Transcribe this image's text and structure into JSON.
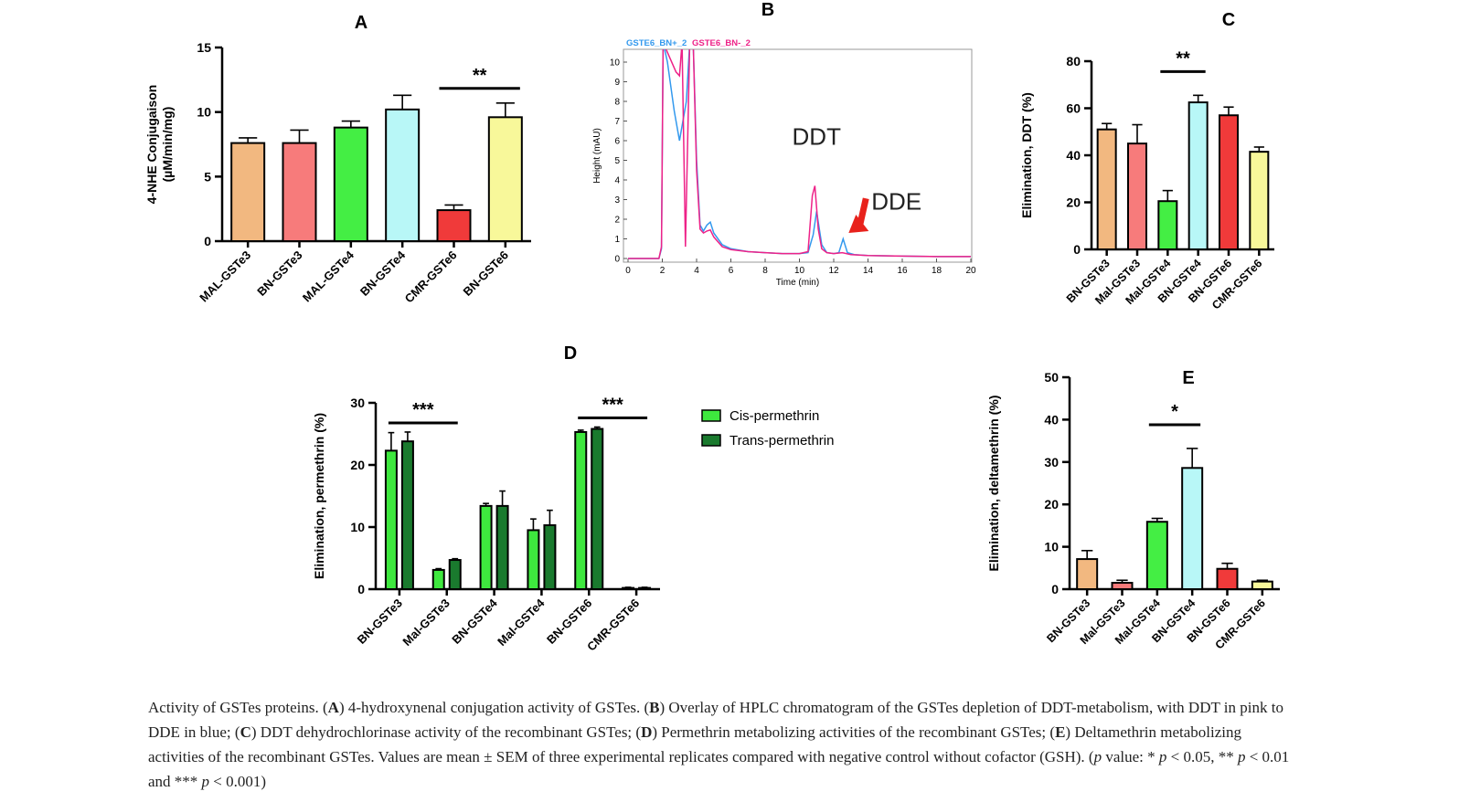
{
  "chart_data": [
    {
      "panel": "A",
      "type": "bar",
      "ylabel": [
        "4-NHE Conjugaison",
        "(µM/min/mg)"
      ],
      "ylim": [
        0,
        15
      ],
      "yticks": [
        0,
        5,
        10,
        15
      ],
      "categories": [
        "MAL-GSTe3",
        "BN-GSTe3",
        "MAL-GSTe4",
        "BN-GSTe4",
        "CMR-GSTe6",
        "BN-GSTe6"
      ],
      "values": [
        7.6,
        7.6,
        8.8,
        10.2,
        2.4,
        9.6
      ],
      "errors": [
        0.4,
        1.0,
        0.5,
        1.1,
        0.4,
        1.1
      ],
      "colors": [
        "#f2b880",
        "#f77b7b",
        "#44ee44",
        "#b8f7f7",
        "#f03a3a",
        "#f8f89a"
      ],
      "significance": [
        {
          "from": 4,
          "to": 5,
          "label": "**"
        }
      ]
    },
    {
      "panel": "B",
      "type": "line",
      "legend": [
        "GSTE6_BN+_2",
        "GSTE6_BN-_2"
      ],
      "legend_colors": [
        "#3399ee",
        "#ee2288"
      ],
      "xlabel": "Time (min)",
      "ylabel": "Height (mAU)",
      "xlim": [
        0,
        20
      ],
      "ylim": [
        0,
        10.8
      ],
      "xticks": [
        0,
        2,
        4,
        6,
        8,
        10,
        12,
        14,
        16,
        18,
        20
      ],
      "yticks": [
        0,
        1,
        2,
        3,
        4,
        5,
        6,
        7,
        8,
        9,
        10
      ],
      "series": [
        {
          "name": "GSTE6_BN+_2",
          "color": "#3399ee",
          "x": [
            0,
            1.8,
            1.95,
            2.05,
            2.3,
            2.7,
            3.0,
            3.4,
            3.6,
            3.8,
            4.0,
            4.2,
            4.4,
            4.6,
            4.8,
            5.0,
            5.5,
            6.0,
            7.0,
            8.0,
            9.0,
            10.0,
            10.5,
            10.8,
            11.0,
            11.3,
            11.6,
            12.0,
            12.3,
            12.55,
            12.8,
            13.2,
            14.0,
            16.0,
            18.0,
            20.0
          ],
          "y": [
            0,
            0,
            0.5,
            11,
            10,
            7.5,
            6.0,
            8.0,
            11,
            11,
            5.0,
            1.7,
            1.4,
            1.7,
            1.85,
            1.3,
            0.7,
            0.5,
            0.35,
            0.3,
            0.25,
            0.25,
            0.3,
            1.2,
            2.4,
            0.7,
            0.3,
            0.25,
            0.3,
            1.0,
            0.3,
            0.2,
            0.15,
            0.12,
            0.1,
            0.1
          ]
        },
        {
          "name": "GSTE6_BN-_2",
          "color": "#ee2288",
          "x": [
            0,
            1.8,
            1.95,
            2.05,
            2.3,
            2.8,
            3.0,
            3.15,
            3.35,
            3.6,
            3.8,
            4.0,
            4.2,
            4.4,
            4.6,
            4.8,
            5.0,
            5.5,
            6.0,
            7.0,
            8.0,
            9.0,
            10.0,
            10.5,
            10.75,
            10.9,
            11.1,
            11.3,
            11.6,
            12.0,
            12.5,
            13.0,
            14.0,
            16.0,
            18.0,
            20.0
          ],
          "y": [
            0,
            0,
            0.6,
            11,
            10.5,
            9.5,
            9.3,
            11,
            0.6,
            11,
            11,
            4.5,
            1.5,
            1.3,
            1.4,
            1.45,
            1.1,
            0.6,
            0.45,
            0.35,
            0.3,
            0.25,
            0.25,
            0.35,
            3.2,
            3.7,
            1.5,
            0.5,
            0.3,
            0.25,
            0.3,
            0.2,
            0.15,
            0.12,
            0.1,
            0.1
          ]
        }
      ],
      "annotations": [
        {
          "text": "DDT",
          "x": 11.0,
          "y": 5.8
        },
        {
          "text": "DDE",
          "x": 14.2,
          "y": 2.5
        }
      ]
    },
    {
      "panel": "C",
      "type": "bar",
      "ylabel": "Elimination, DDT (%)",
      "ylim": [
        0,
        80
      ],
      "yticks": [
        0,
        20,
        40,
        60,
        80
      ],
      "categories": [
        "BN-GSTe3",
        "Mal-GSTe3",
        "Mal-GSTe4",
        "BN-GSTe4",
        "BN-GSTe6",
        "CMR-GSTe6"
      ],
      "values": [
        51,
        45,
        20.5,
        62.5,
        57,
        41.5
      ],
      "errors": [
        2.5,
        8,
        4.5,
        3,
        3.5,
        2
      ],
      "colors": [
        "#f2b880",
        "#f77b7b",
        "#44ee44",
        "#b8f7f7",
        "#f03a3a",
        "#f8f89a"
      ],
      "significance": [
        {
          "from": 2,
          "to": 3,
          "label": "**"
        }
      ]
    },
    {
      "panel": "D",
      "type": "bar",
      "ylabel": "Elimination, permethrin (%)",
      "ylim": [
        0,
        30
      ],
      "yticks": [
        0,
        10,
        20,
        30
      ],
      "categories": [
        "BN-GSTe3",
        "Mal-GSTe3",
        "BN-GSTe4",
        "Mal-GSTe4",
        "BN-GSTe6",
        "CMR-GSTe6"
      ],
      "series": [
        {
          "name": "Cis-permethrin",
          "color": "#3ee83e",
          "values": [
            22.3,
            3.1,
            13.4,
            9.5,
            25.3,
            0.2
          ],
          "errors": [
            2.9,
            0.2,
            0.4,
            1.8,
            0.3,
            0.1
          ]
        },
        {
          "name": "Trans-permethrin",
          "color": "#1a7a2e",
          "values": [
            23.8,
            4.7,
            13.4,
            10.3,
            25.8,
            0.2
          ],
          "errors": [
            1.5,
            0.2,
            2.4,
            2.4,
            0.3,
            0.1
          ]
        }
      ],
      "significance": [
        {
          "from": 0,
          "to": 1,
          "label": "***"
        },
        {
          "from": 4,
          "to": 5,
          "label": "***"
        }
      ]
    },
    {
      "panel": "E",
      "type": "bar",
      "ylabel": "Elimination, deltamethrin (%)",
      "ylim": [
        0,
        50
      ],
      "yticks": [
        0,
        10,
        20,
        30,
        40,
        50
      ],
      "categories": [
        "BN-GSTe3",
        "Mal-GSTe3",
        "Mal-GSTe4",
        "BN-GSTe4",
        "BN-GSTe6",
        "CMR-GSTe6"
      ],
      "values": [
        7.1,
        1.5,
        15.9,
        28.6,
        4.8,
        1.8
      ],
      "errors": [
        2.0,
        0.6,
        0.8,
        4.6,
        1.3,
        0.3
      ],
      "colors": [
        "#f2b880",
        "#f77b7b",
        "#44ee44",
        "#b8f7f7",
        "#f03a3a",
        "#f8f89a"
      ],
      "significance": [
        {
          "from": 2,
          "to": 3,
          "label": "*"
        }
      ]
    }
  ],
  "caption": {
    "t1": "Activity of GSTes proteins. (",
    "l1": "A",
    "t2": ") 4-hydroxynenal conjugation activity of GSTes. (",
    "l2": "B",
    "t3": ") Overlay of HPLC chromatogram of the GSTes depletion of DDT-metabolism, with DDT in pink to DDE in blue; (",
    "l3": "C",
    "t4": ") DDT dehydrochlorinase activity of the recombinant GSTes; (",
    "l4": "D",
    "t5": ") Permethrin metabolizing activities of the recombinant GSTes; (",
    "l5": "E",
    "t6": ") Deltamethrin metabolizing activities of the recombinant GSTes. Values are mean ± SEM of three experimental replicates compared with negative control without cofactor (GSH). (",
    "p1": "p",
    "t7": " value: * ",
    "p2": "p",
    "t8": " < 0.05, ** ",
    "p3": "p",
    "t9": " < 0.01 and *** ",
    "p4": "p",
    "t10": " < 0.001)"
  }
}
